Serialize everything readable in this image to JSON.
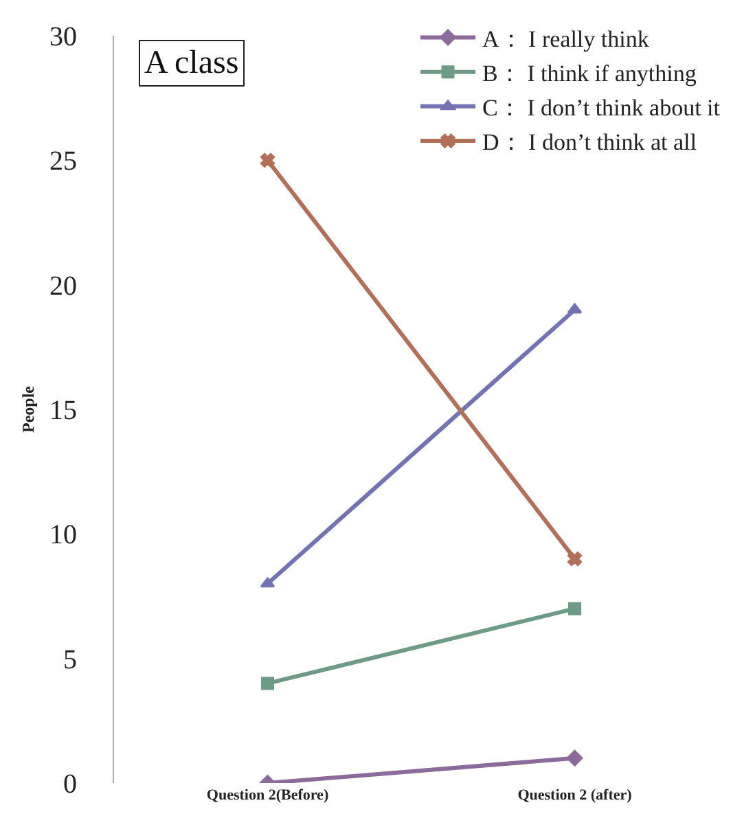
{
  "chart_data": {
    "type": "line",
    "ylabel": "People",
    "categories": [
      "Question 2(Before)",
      "Question 2 (after)"
    ],
    "series": [
      {
        "name": "A： I really think",
        "color": "#8c6a9c",
        "values": [
          0,
          1
        ],
        "marker": "diamond"
      },
      {
        "name": "B： I think if anything",
        "color": "#6e9a88",
        "values": [
          4,
          7
        ],
        "marker": "square"
      },
      {
        "name": "C： I don’t think about it",
        "color": "#7472b0",
        "values": [
          8,
          19
        ],
        "marker": "triangle"
      },
      {
        "name": "D： I don’t think at all",
        "color": "#b0705a",
        "values": [
          25,
          9
        ],
        "marker": "cross"
      }
    ],
    "ylim": [
      0,
      30
    ],
    "yticks": [
      0,
      5,
      10,
      15,
      20,
      25,
      30
    ],
    "legend": "top right",
    "annotations": [
      "A class"
    ]
  }
}
